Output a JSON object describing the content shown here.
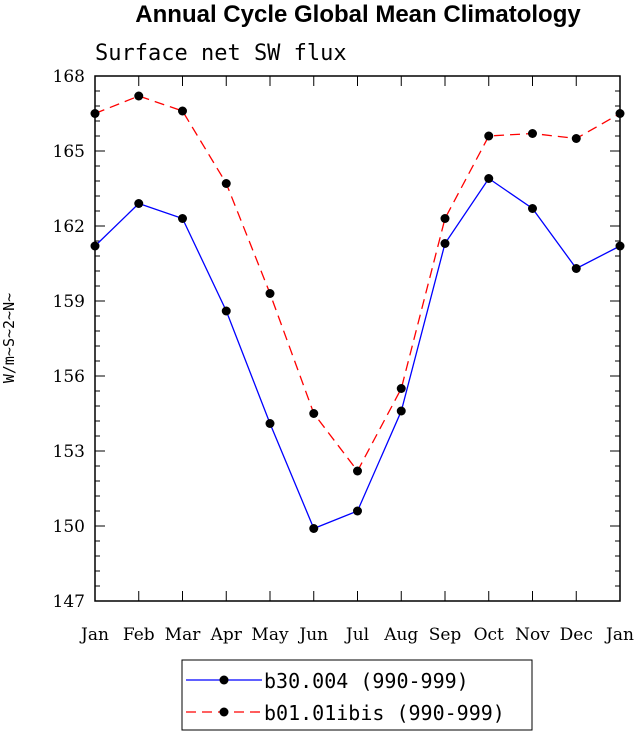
{
  "chart_data": {
    "type": "line",
    "title": "Annual Cycle Global Mean Climatology",
    "subtitle": "Surface net SW flux",
    "xlabel": "",
    "ylabel": "W/m~S~2~N~",
    "categories": [
      "Jan",
      "Feb",
      "Mar",
      "Apr",
      "May",
      "Jun",
      "Jul",
      "Aug",
      "Sep",
      "Oct",
      "Nov",
      "Dec",
      "Jan"
    ],
    "ylim": [
      147,
      168
    ],
    "yticks": [
      147,
      150,
      153,
      156,
      159,
      162,
      165,
      168
    ],
    "ytick_labels": [
      "147",
      "150",
      "153",
      "156",
      "159",
      "162",
      "165",
      "168"
    ],
    "grid": false,
    "legend_position": "bottom",
    "series": [
      {
        "name": "b30.004 (990-999)",
        "color": "#0000ff",
        "dash": "solid",
        "marker": "filled-circle",
        "values": [
          161.2,
          162.9,
          162.3,
          158.6,
          154.1,
          149.9,
          150.6,
          154.6,
          161.3,
          163.9,
          162.7,
          160.3,
          161.2
        ]
      },
      {
        "name": "b01.01ibis (990-999)",
        "color": "#ff0000",
        "dash": "dashed",
        "marker": "filled-circle",
        "values": [
          166.5,
          167.2,
          166.6,
          163.7,
          159.3,
          154.5,
          152.2,
          155.5,
          162.3,
          165.6,
          165.7,
          165.5,
          166.5
        ]
      }
    ]
  }
}
